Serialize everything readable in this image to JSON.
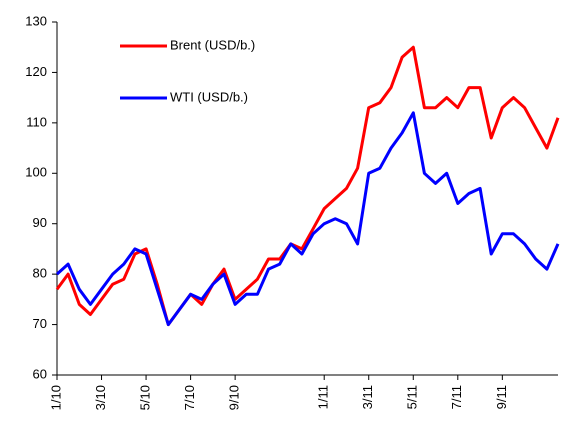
{
  "chart_data": {
    "type": "line",
    "categories": [
      "1/10",
      null,
      null,
      null,
      "3/10",
      null,
      null,
      null,
      "5/10",
      null,
      null,
      null,
      "7/10",
      null,
      null,
      null,
      "9/10",
      null,
      null,
      null,
      null,
      null,
      null,
      null,
      "1/11",
      null,
      null,
      null,
      "3/11",
      null,
      null,
      null,
      "5/11",
      null,
      null,
      null,
      "7/11",
      null,
      null,
      null,
      "9/11",
      null,
      null,
      null,
      null,
      null
    ],
    "series": [
      {
        "name": "Brent (USD/b.)",
        "color": "#ff0000",
        "values": [
          77,
          80,
          74,
          72,
          75,
          78,
          79,
          84,
          85,
          78,
          70,
          73,
          76,
          74,
          78,
          81,
          75,
          77,
          79,
          83,
          83,
          86,
          85,
          89,
          93,
          95,
          97,
          101,
          113,
          114,
          117,
          123,
          125,
          113,
          113,
          115,
          113,
          117,
          117,
          107,
          113,
          115,
          113,
          109,
          105,
          111
        ]
      },
      {
        "name": "WTI (USD/b.)",
        "color": "#0000ff",
        "values": [
          80,
          82,
          77,
          74,
          77,
          80,
          82,
          85,
          84,
          77,
          70,
          73,
          76,
          75,
          78,
          80,
          74,
          76,
          76,
          81,
          82,
          86,
          84,
          88,
          90,
          91,
          90,
          86,
          100,
          101,
          105,
          108,
          112,
          100,
          98,
          100,
          94,
          96,
          97,
          84,
          88,
          88,
          86,
          83,
          81,
          86
        ]
      }
    ],
    "ylim": [
      60,
      130
    ],
    "yticks": [
      60,
      70,
      80,
      90,
      100,
      110,
      120,
      130
    ],
    "grid": false
  }
}
